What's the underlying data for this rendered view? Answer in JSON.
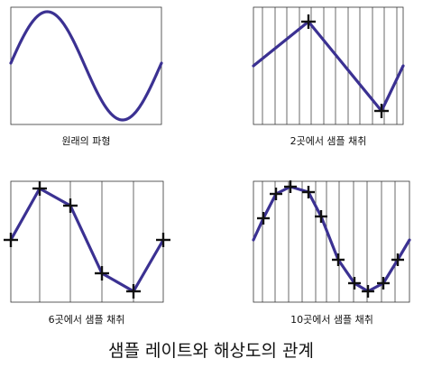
{
  "title": "샘플 레이트와 해상도의 관계",
  "colors": {
    "wave": "#3b3192",
    "frame": "#333333",
    "grid": "#444444",
    "marker": "#111111"
  },
  "panels": [
    {
      "id": "original",
      "caption": "원래의 파형",
      "samples": 0
    },
    {
      "id": "sample-2",
      "caption": "2곳에서 샘플 채취",
      "samples": 2
    },
    {
      "id": "sample-6",
      "caption": "6곳에서 샘플 채취",
      "samples": 6
    },
    {
      "id": "sample-10",
      "caption": "10곳에서 샘플 채취",
      "samples": 10
    }
  ]
}
